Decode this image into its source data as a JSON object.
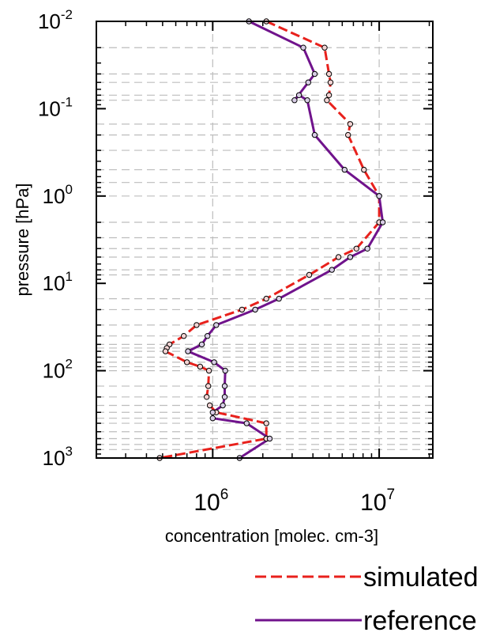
{
  "chart_data": {
    "type": "line",
    "xlabel": "concentration [molec. cm-3]",
    "ylabel": "pressure [hPa]",
    "x_scale": "log",
    "y_scale": "log",
    "y_reversed": true,
    "xlim": [
      200000,
      21000000
    ],
    "ylim": [
      0.01,
      1000
    ],
    "grid": "dashed horizontal at pressure levels and vertical at decades",
    "legend_position": "bottom-right",
    "x_ticks": [
      {
        "value": 1000000,
        "base": "10",
        "exp": "6"
      },
      {
        "value": 10000000,
        "base": "10",
        "exp": "7"
      }
    ],
    "y_ticks": [
      {
        "value": 0.01,
        "base": "10",
        "exp": "-2"
      },
      {
        "value": 0.1,
        "base": "10",
        "exp": "-1"
      },
      {
        "value": 1,
        "base": "10",
        "exp": "0"
      },
      {
        "value": 10,
        "base": "10",
        "exp": "1"
      },
      {
        "value": 100,
        "base": "10",
        "exp": "2"
      },
      {
        "value": 1000,
        "base": "10",
        "exp": "3"
      }
    ],
    "pressure_levels": [
      0.01,
      0.02,
      0.04,
      0.05,
      0.07,
      0.08,
      0.15,
      0.2,
      0.3,
      0.5,
      0.7,
      1,
      2,
      3,
      4,
      5,
      7,
      8,
      15,
      20,
      30,
      40,
      50,
      55,
      60,
      70,
      80,
      90,
      100,
      150,
      200,
      250,
      300,
      350,
      400,
      500,
      600,
      700,
      800,
      1000
    ],
    "series": [
      {
        "name": "simulated",
        "color": "#e8211c",
        "dash": "dashed",
        "points": [
          {
            "p": 0.01,
            "x": 2100000
          },
          {
            "p": 0.02,
            "x": 4700000
          },
          {
            "p": 0.04,
            "x": 5000000
          },
          {
            "p": 0.05,
            "x": 5100000
          },
          {
            "p": 0.07,
            "x": 5000000
          },
          {
            "p": 0.08,
            "x": 4850000
          },
          {
            "p": 0.15,
            "x": 6700000
          },
          {
            "p": 0.2,
            "x": 6500000
          },
          {
            "p": 0.5,
            "x": 8100000
          },
          {
            "p": 1,
            "x": 10000000
          },
          {
            "p": 2,
            "x": 10000000
          },
          {
            "p": 4,
            "x": 7300000
          },
          {
            "p": 5,
            "x": 5700000
          },
          {
            "p": 8,
            "x": 3800000
          },
          {
            "p": 15,
            "x": 2100000
          },
          {
            "p": 20,
            "x": 1500000
          },
          {
            "p": 30,
            "x": 800000
          },
          {
            "p": 40,
            "x": 670000
          },
          {
            "p": 50,
            "x": 550000
          },
          {
            "p": 55,
            "x": 530000
          },
          {
            "p": 60,
            "x": 520000
          },
          {
            "p": 80,
            "x": 700000
          },
          {
            "p": 90,
            "x": 840000
          },
          {
            "p": 100,
            "x": 950000
          },
          {
            "p": 150,
            "x": 940000
          },
          {
            "p": 200,
            "x": 920000
          },
          {
            "p": 250,
            "x": 960000
          },
          {
            "p": 300,
            "x": 1050000
          },
          {
            "p": 400,
            "x": 2100000
          },
          {
            "p": 600,
            "x": 2100000
          },
          {
            "p": 1000,
            "x": 480000
          }
        ]
      },
      {
        "name": "reference",
        "color": "#70138c",
        "dash": "solid",
        "points": [
          {
            "p": 0.01,
            "x": 1650000
          },
          {
            "p": 0.02,
            "x": 3500000
          },
          {
            "p": 0.04,
            "x": 4100000
          },
          {
            "p": 0.05,
            "x": 3750000
          },
          {
            "p": 0.08,
            "x": 3100000
          },
          {
            "p": 0.07,
            "x": 3300000
          },
          {
            "p": 0.08,
            "x": 3700000
          },
          {
            "p": 0.2,
            "x": 4100000
          },
          {
            "p": 0.5,
            "x": 6200000
          },
          {
            "p": 1,
            "x": 10000000
          },
          {
            "p": 2,
            "x": 10500000
          },
          {
            "p": 4,
            "x": 8500000
          },
          {
            "p": 5,
            "x": 6700000
          },
          {
            "p": 7,
            "x": 5200000
          },
          {
            "p": 15,
            "x": 2500000
          },
          {
            "p": 20,
            "x": 1800000
          },
          {
            "p": 30,
            "x": 1050000
          },
          {
            "p": 40,
            "x": 930000
          },
          {
            "p": 50,
            "x": 860000
          },
          {
            "p": 60,
            "x": 710000
          },
          {
            "p": 80,
            "x": 1020000
          },
          {
            "p": 100,
            "x": 1190000
          },
          {
            "p": 150,
            "x": 1180000
          },
          {
            "p": 200,
            "x": 1180000
          },
          {
            "p": 250,
            "x": 1150000
          },
          {
            "p": 300,
            "x": 1000000
          },
          {
            "p": 350,
            "x": 1000000
          },
          {
            "p": 400,
            "x": 1600000
          },
          {
            "p": 600,
            "x": 2200000
          },
          {
            "p": 1000,
            "x": 1450000
          }
        ]
      }
    ],
    "legend": [
      {
        "label": "simulated",
        "series": 0
      },
      {
        "label": "reference",
        "series": 1
      }
    ]
  }
}
